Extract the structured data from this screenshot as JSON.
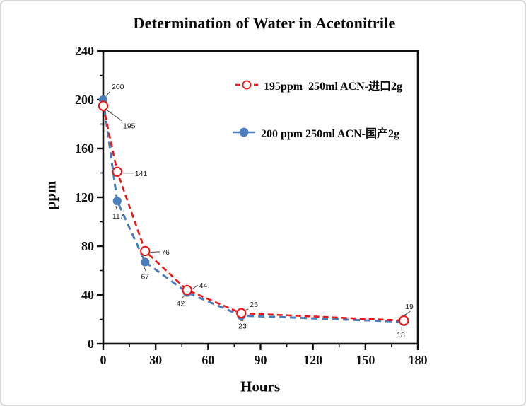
{
  "chart_data": {
    "type": "line",
    "title": "Determination of Water in Acetonitrile",
    "xlabel": "Hours",
    "ylabel": "ppm",
    "xlim": [
      0,
      180
    ],
    "ylim": [
      0,
      240
    ],
    "x_major_ticks": [
      0,
      30,
      60,
      90,
      120,
      150,
      180
    ],
    "x_minor_ticks": [
      15,
      45,
      75,
      105,
      135,
      165
    ],
    "y_major_ticks": [
      0,
      40,
      80,
      120,
      160,
      200,
      240
    ],
    "y_minor_ticks": [
      20,
      60,
      100,
      140,
      180,
      220
    ],
    "grid": false,
    "frame": "full-box",
    "legend_position": "inside-top-right",
    "axis_color": "#111111",
    "annotation_color": "#222222",
    "x": [
      0,
      8,
      24,
      48,
      79,
      172
    ],
    "series": [
      {
        "name": "195ppm  250ml ACN-进口2g",
        "color": "#f01414",
        "marker": "open-circle",
        "line_style": "dashed",
        "values": [
          195,
          141,
          76,
          44,
          25,
          19
        ],
        "point_labels": [
          "195",
          "141",
          "76",
          "44",
          "25",
          "19"
        ],
        "label_offsets": [
          [
            28,
            32
          ],
          [
            25,
            6
          ],
          [
            23,
            5
          ],
          [
            17,
            -3
          ],
          [
            12,
            -9
          ],
          [
            2,
            -16
          ]
        ]
      },
      {
        "name": "200 ppm 250ml ACN-国产2g",
        "color": "#4a7ebc",
        "marker": "filled-circle",
        "line_style": "dashed",
        "values": [
          200,
          117,
          67,
          42,
          23,
          18
        ],
        "point_labels": [
          "200",
          "117",
          "67",
          "42",
          "23",
          "18"
        ],
        "label_offsets": [
          [
            12,
            -15
          ],
          [
            -7,
            25
          ],
          [
            -6,
            24
          ],
          [
            -15,
            19
          ],
          [
            -4,
            18
          ],
          [
            -10,
            22
          ]
        ]
      }
    ]
  }
}
